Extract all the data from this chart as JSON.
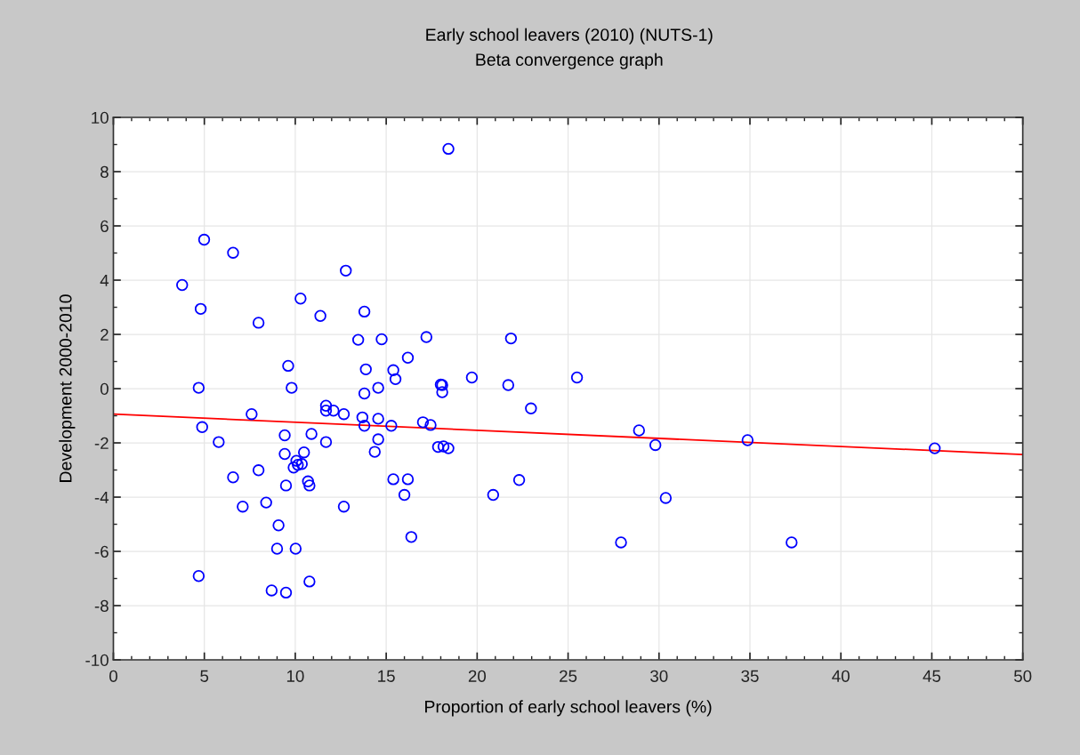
{
  "chart_data": {
    "type": "scatter",
    "title": "Early school leavers (2010) (NUTS-1)",
    "subtitle": "Beta convergence graph",
    "xlabel": "Proportion of early school leavers (%)",
    "ylabel": "Development 2000-2010",
    "xlim": [
      0,
      50
    ],
    "xticks": [
      0,
      5,
      10,
      15,
      20,
      25,
      30,
      35,
      40,
      45,
      50
    ],
    "ylim": [
      -10,
      10
    ],
    "yticks": [
      -10,
      -8,
      -6,
      -4,
      -2,
      0,
      2,
      4,
      6,
      8,
      10
    ],
    "grid": true,
    "legend": false,
    "series": [
      {
        "color": "#0000ff",
        "marker": "circle",
        "x": [
          3.78,
          4.99,
          6.58,
          4.8,
          7.98,
          4.69,
          4.88,
          5.79,
          7.6,
          6.58,
          7.98,
          7.11,
          8.4,
          9.08,
          9.0,
          10.02,
          4.69,
          8.7,
          9.49,
          10.78,
          10.29,
          11.38,
          12.78,
          13.8,
          13.46,
          14.75,
          9.61,
          9.8,
          11.69,
          11.69,
          12.1,
          12.67,
          9.42,
          10.89,
          11.69,
          9.42,
          10.48,
          10.06,
          9.91,
          10.14,
          10.36,
          9.49,
          10.7,
          10.78,
          12.67,
          13.88,
          13.8,
          14.56,
          13.69,
          13.8,
          14.56,
          14.56,
          14.37,
          15.39,
          15.51,
          15.28,
          15.39,
          16.19,
          16.19,
          16.0,
          16.38,
          17.21,
          17.02,
          17.44,
          18.42,
          18.0,
          18.08,
          18.08,
          17.85,
          18.15,
          18.42,
          19.71,
          21.71,
          21.86,
          22.96,
          20.88,
          22.31,
          25.49,
          28.9,
          29.8,
          30.37,
          27.91,
          34.87,
          37.29,
          45.16
        ],
        "values": [
          3.82,
          5.49,
          5.01,
          2.94,
          2.43,
          0.03,
          -1.42,
          -1.97,
          -0.94,
          -3.27,
          -3.01,
          -4.35,
          -4.2,
          -5.04,
          -5.9,
          -5.9,
          -6.91,
          -7.44,
          -7.52,
          -7.11,
          3.32,
          2.68,
          4.35,
          2.84,
          1.8,
          1.82,
          0.84,
          0.03,
          -0.63,
          -0.81,
          -0.81,
          -0.94,
          -1.72,
          -1.67,
          -1.97,
          -2.41,
          -2.35,
          -2.66,
          -2.91,
          -2.81,
          -2.78,
          -3.57,
          -3.42,
          -3.57,
          -4.35,
          0.71,
          -0.18,
          0.03,
          -1.06,
          -1.37,
          -1.11,
          -1.87,
          -2.33,
          0.68,
          0.35,
          -1.37,
          -3.34,
          1.14,
          -3.34,
          -3.92,
          -5.47,
          1.9,
          -1.24,
          -1.34,
          8.84,
          0.15,
          0.13,
          -0.13,
          -2.15,
          -2.13,
          -2.2,
          0.41,
          0.13,
          1.85,
          -0.73,
          -3.92,
          -3.37,
          0.41,
          -1.54,
          -2.08,
          -4.03,
          -5.67,
          -1.9,
          -5.67,
          -2.2
        ]
      },
      {
        "type": "line",
        "marker": "none",
        "color": "#ff0000",
        "x": [
          0,
          50
        ],
        "values": [
          -0.94,
          -2.43
        ]
      }
    ]
  }
}
